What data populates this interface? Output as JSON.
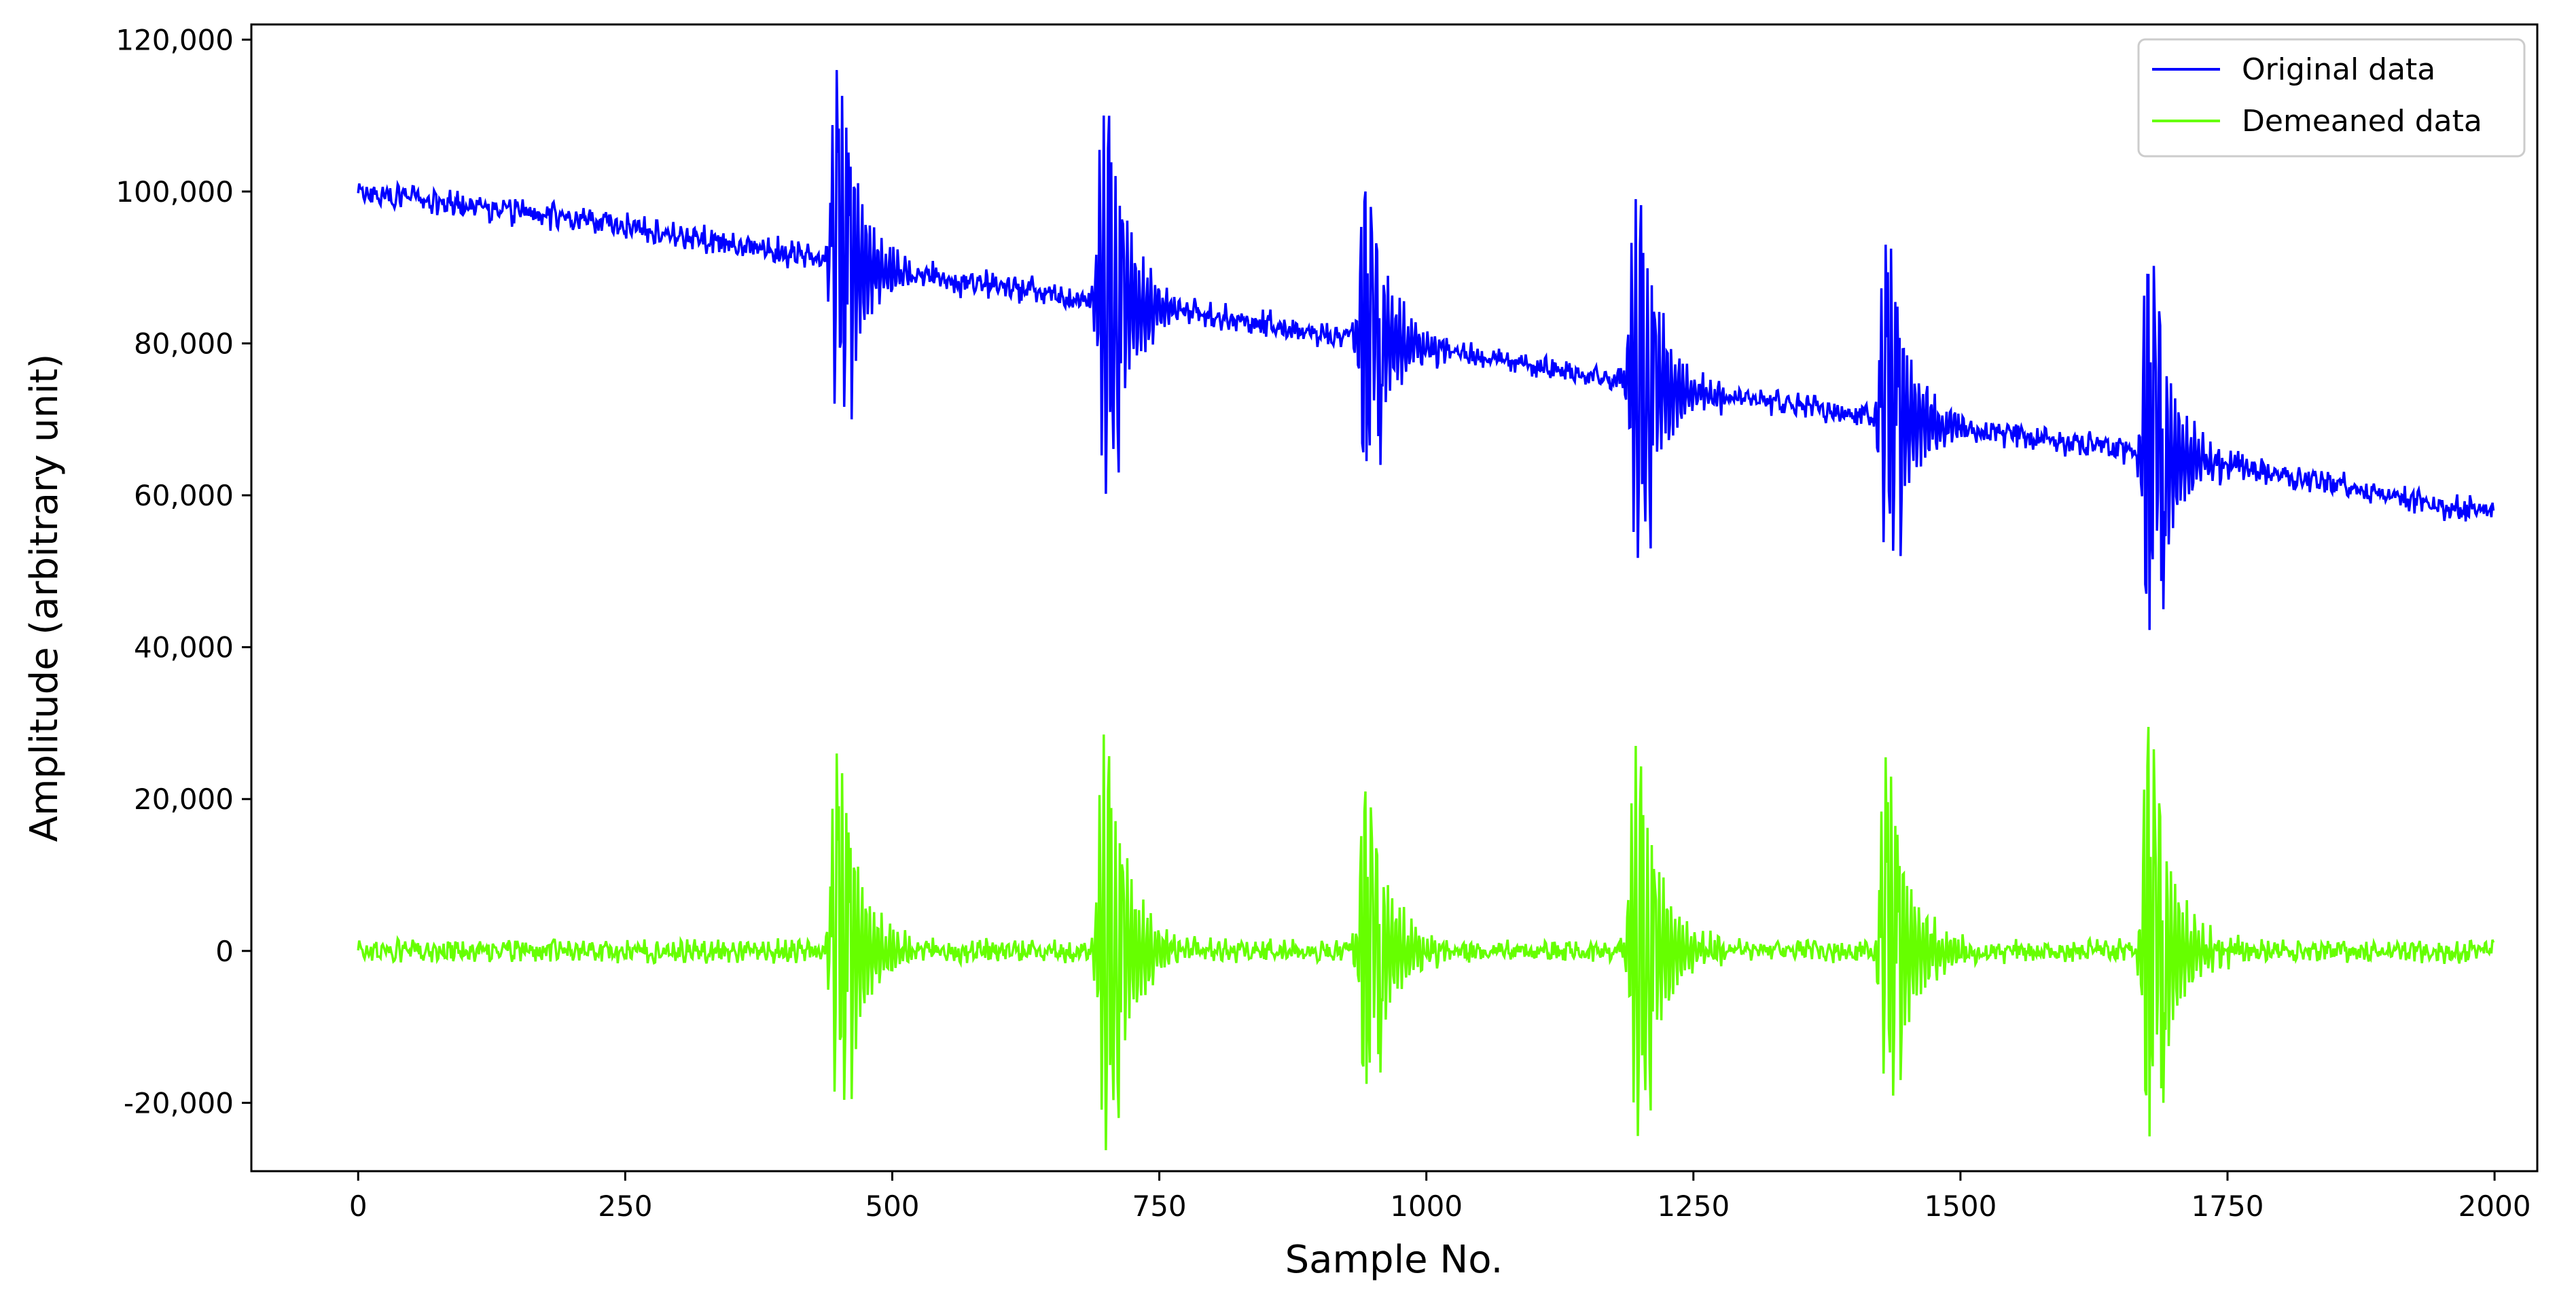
{
  "chart_data": {
    "type": "line",
    "title": "",
    "xlabel": "Sample No.",
    "ylabel": "Amplitude (arbitrary unit)",
    "xlim": [
      -100,
      2040
    ],
    "ylim": [
      -29000,
      122000
    ],
    "x_ticks": [
      0,
      250,
      500,
      750,
      1000,
      1250,
      1500,
      1750,
      2000
    ],
    "x_tick_labels": [
      "0",
      "250",
      "500",
      "750",
      "1000",
      "1250",
      "1500",
      "1750",
      "2000"
    ],
    "y_ticks": [
      -20000,
      0,
      20000,
      40000,
      60000,
      80000,
      100000,
      120000
    ],
    "y_tick_labels": [
      "-20,000",
      "0",
      "20,000",
      "40,000",
      "60,000",
      "80,000",
      "100,000",
      "120,000"
    ],
    "grid": false,
    "legend_position": "top-right",
    "n_samples": 2000,
    "baseline_trend": [
      [
        0,
        100000
      ],
      [
        250,
        95500
      ],
      [
        500,
        89500
      ],
      [
        750,
        84500
      ],
      [
        1000,
        79500
      ],
      [
        1250,
        73500
      ],
      [
        1500,
        69000
      ],
      [
        1750,
        64000
      ],
      [
        2000,
        57500
      ]
    ],
    "bursts": [
      {
        "center_sample": 450,
        "max": 26000,
        "min": -19500
      },
      {
        "center_sample": 700,
        "max": 28500,
        "min": -22000
      },
      {
        "center_sample": 945,
        "max": 21000,
        "min": -16000
      },
      {
        "center_sample": 1198,
        "max": 27000,
        "min": -21000
      },
      {
        "center_sample": 1432,
        "max": 25500,
        "min": -17000
      },
      {
        "center_sample": 1678,
        "max": 29500,
        "min": -20000
      }
    ],
    "series": [
      {
        "name": "Original data",
        "color": "#0000ff",
        "peaks_max": [
          116000,
          110000,
          100000,
          99000,
          93000,
          89000
        ],
        "peaks_min": [
          70000,
          63000,
          64000,
          53000,
          52000,
          45000
        ]
      },
      {
        "name": "Demeaned data",
        "color": "#66ff00",
        "peaks_max": [
          26000,
          28500,
          21000,
          27000,
          25500,
          29500
        ],
        "peaks_min": [
          -19500,
          -22000,
          -16000,
          -21000,
          -17000,
          -20000
        ]
      }
    ]
  }
}
